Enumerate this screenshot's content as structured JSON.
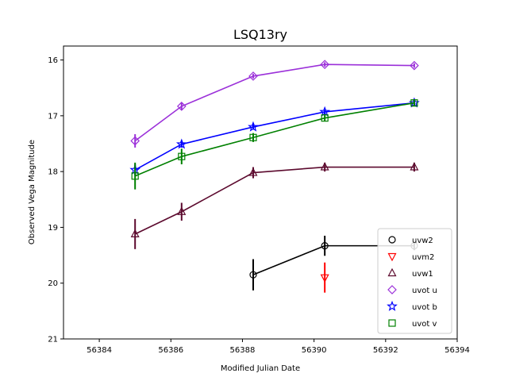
{
  "chart_data": {
    "type": "line",
    "title": "LSQ13ry",
    "xlabel": "Modified Julian Date",
    "ylabel": "Observed Vega Magnitude",
    "xlim": [
      56383,
      56394
    ],
    "ylim": [
      21,
      15.75
    ],
    "y_inverted": true,
    "xticks": [
      "56384",
      "56386",
      "56388",
      "56390",
      "56392",
      "56394"
    ],
    "yticks": [
      "16",
      "17",
      "18",
      "19",
      "20",
      "21"
    ],
    "legend_position": "lower-right",
    "series": [
      {
        "name": "uvw2",
        "color": "#000000",
        "marker": "circle",
        "points": [
          {
            "x": 56388.3,
            "y": 19.85,
            "err": 0.28
          },
          {
            "x": 56390.3,
            "y": 19.33,
            "err": 0.18
          },
          {
            "x": 56392.8,
            "y": 19.33,
            "err": 0.08
          }
        ]
      },
      {
        "name": "uvm2",
        "color": "#ff0000",
        "marker": "triangle-down",
        "connect": false,
        "points": [
          {
            "x": 56390.3,
            "y": 19.9,
            "err": 0.27
          }
        ]
      },
      {
        "name": "uvw1",
        "color": "#5c0a2e",
        "marker": "triangle-up",
        "points": [
          {
            "x": 56385.0,
            "y": 19.12,
            "err": 0.27
          },
          {
            "x": 56386.3,
            "y": 18.72,
            "err": 0.16
          },
          {
            "x": 56388.3,
            "y": 18.02,
            "err": 0.1
          },
          {
            "x": 56390.3,
            "y": 17.92,
            "err": 0.08
          },
          {
            "x": 56392.8,
            "y": 17.92,
            "err": 0.08
          }
        ]
      },
      {
        "name": "uvot u",
        "color": "#9b30d9",
        "marker": "diamond",
        "points": [
          {
            "x": 56385.0,
            "y": 17.45,
            "err": 0.12
          },
          {
            "x": 56386.3,
            "y": 16.83,
            "err": 0.06
          },
          {
            "x": 56388.3,
            "y": 16.29,
            "err": 0.04
          },
          {
            "x": 56390.3,
            "y": 16.08,
            "err": 0.04
          },
          {
            "x": 56392.8,
            "y": 16.1,
            "err": 0.04
          }
        ]
      },
      {
        "name": "uvot b",
        "color": "#0000ff",
        "marker": "star",
        "points": [
          {
            "x": 56385.0,
            "y": 17.97,
            "err": 0.1
          },
          {
            "x": 56386.3,
            "y": 17.51,
            "err": 0.06
          },
          {
            "x": 56388.3,
            "y": 17.2,
            "err": 0.05
          },
          {
            "x": 56390.3,
            "y": 16.93,
            "err": 0.04
          },
          {
            "x": 56392.8,
            "y": 16.77,
            "err": 0.04
          }
        ]
      },
      {
        "name": "uvot v",
        "color": "#008000",
        "marker": "square",
        "points": [
          {
            "x": 56385.0,
            "y": 18.08,
            "err": 0.24
          },
          {
            "x": 56386.3,
            "y": 17.73,
            "err": 0.14
          },
          {
            "x": 56388.3,
            "y": 17.39,
            "err": 0.08
          },
          {
            "x": 56390.3,
            "y": 17.04,
            "err": 0.06
          },
          {
            "x": 56392.8,
            "y": 16.77,
            "err": 0.06
          }
        ]
      }
    ]
  }
}
